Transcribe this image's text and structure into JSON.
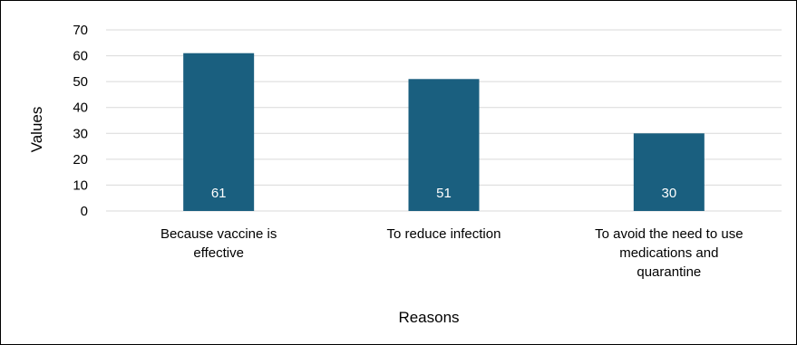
{
  "chart_data": {
    "type": "bar",
    "title": "",
    "xlabel": "Reasons",
    "ylabel": "Values",
    "categories": [
      [
        "Because vaccine is",
        "effective"
      ],
      [
        "To reduce infection"
      ],
      [
        "To avoid the need to use",
        "medications and",
        "quarantine"
      ]
    ],
    "values": [
      61,
      51,
      30
    ],
    "data_labels": [
      "61",
      "51",
      "30"
    ],
    "ylim": [
      0,
      70
    ],
    "yticks": [
      0,
      10,
      20,
      30,
      40,
      50,
      60,
      70
    ],
    "grid": true,
    "legend": "none",
    "bar_color": "#1a5f7f",
    "grid_color": "#d9d9d9"
  }
}
